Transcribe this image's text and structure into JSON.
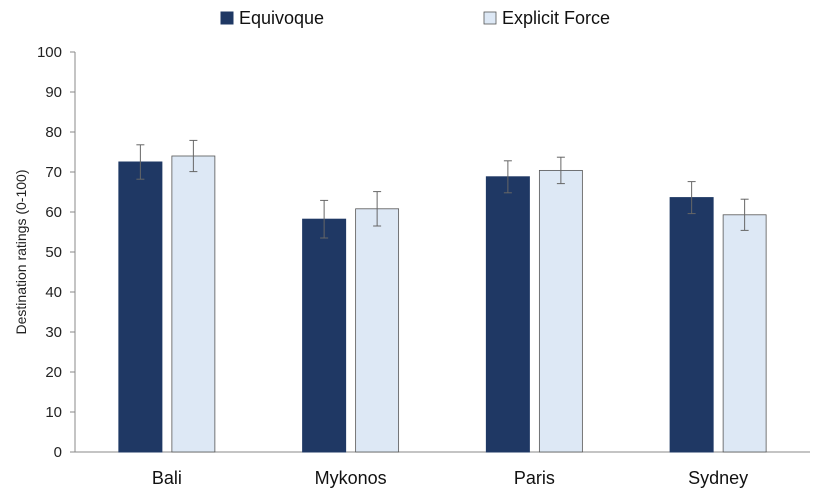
{
  "chart_data": {
    "type": "bar",
    "title": "",
    "xlabel": "",
    "ylabel": "Destination ratings (0-100)",
    "ylim": [
      0,
      100
    ],
    "yticks": [
      "0",
      "10",
      "20",
      "30",
      "40",
      "50",
      "60",
      "70",
      "80",
      "90",
      "100"
    ],
    "categories": [
      "Bali",
      "Mykonos",
      "Paris",
      "Sydney"
    ],
    "series": [
      {
        "name": "Equivoque",
        "color": "#1f3864",
        "values": [
          72.5,
          58.2,
          68.8,
          63.6
        ],
        "errors": [
          4.3,
          4.7,
          4.0,
          4.0
        ]
      },
      {
        "name": "Explicit Force",
        "color": "#dde8f5",
        "values": [
          74.0,
          60.8,
          70.4,
          59.3
        ],
        "errors": [
          3.9,
          4.3,
          3.3,
          3.9
        ]
      }
    ],
    "legend_position": "top-center",
    "grid": false
  }
}
